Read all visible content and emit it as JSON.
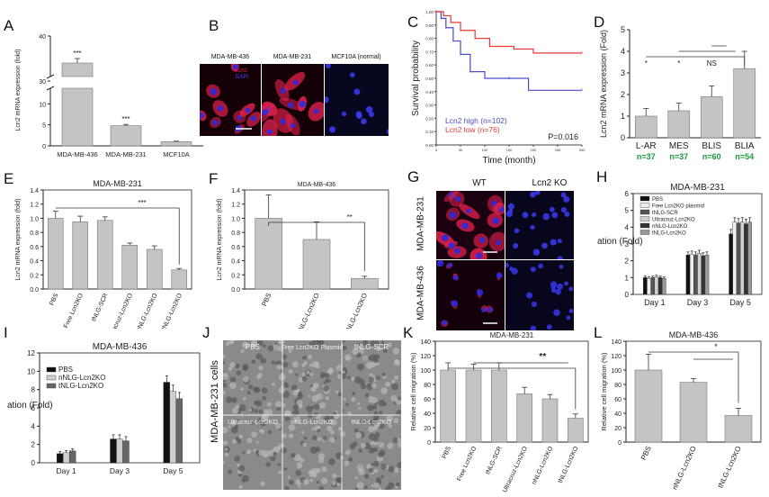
{
  "panel_letters": [
    "A",
    "B",
    "C",
    "D",
    "E",
    "F",
    "G",
    "H",
    "I",
    "J",
    "K",
    "L"
  ],
  "colors": {
    "bar_gray": "#c4c4c4",
    "km_red": "#e23a3a",
    "km_blue": "#4a4ad0",
    "group_green": "#1a9a3a",
    "micro_red": "#e0204a",
    "micro_blue": "#2a2ae0",
    "micro_bg": "#150008",
    "bw_bg": "#8a8a8a"
  },
  "panelB": {
    "titles": [
      "MDA-MB-436",
      "MDA-MB-231",
      "MCF10A (normal)"
    ],
    "legend": [
      "Lcn2",
      "DAPI"
    ]
  },
  "panelG": {
    "col_titles": [
      "WT",
      "Lcn2 KO"
    ],
    "row_titles": [
      "MDA-MB-231",
      "MDA-MB-436"
    ]
  },
  "panelJ": {
    "side_label": "MDA-MB-231 cells",
    "cells": [
      "PBS",
      "Free Lcn2KO Plasmid",
      "tNLG-SCR",
      "Ultracruz-Lcn2KO",
      "nNLG-Lcn2KO",
      "tNLG-Lcn2KO"
    ]
  },
  "chart_data": [
    {
      "panel": "A",
      "type": "bar",
      "ylabel": "Lcn2 mRNA expression (fold)",
      "categories": [
        "MDA-MB-436",
        "MDA-MB-231",
        "MCF10A"
      ],
      "values": [
        34,
        4.8,
        1
      ],
      "errors": [
        1,
        0.3,
        0.1
      ],
      "axis_break": [
        12,
        30
      ],
      "yticks": [
        "0",
        "5",
        "10",
        "30",
        "40"
      ],
      "significance": [
        "***",
        "***",
        ""
      ]
    },
    {
      "panel": "C",
      "type": "line",
      "ylabel": "Survival probability",
      "xlabel": "Time (month)",
      "yticks": [
        "0.00",
        "0.10",
        "0.20",
        "0.30",
        "0.40",
        "0.50",
        "0.60",
        "0.70",
        "0.80",
        "0.90",
        "1.00"
      ],
      "xticks": [
        "0",
        "50",
        "100",
        "150",
        "200",
        "250",
        "300"
      ],
      "ylim": [
        0,
        1
      ],
      "xlim": [
        0,
        300
      ],
      "series": [
        {
          "name": "Lcn2 high (n=102)",
          "x": [
            0,
            10,
            20,
            35,
            50,
            70,
            100,
            150,
            190,
            300
          ],
          "y": [
            1,
            0.95,
            0.88,
            0.78,
            0.68,
            0.55,
            0.5,
            0.5,
            0.41,
            0.41
          ]
        },
        {
          "name": "Lcn2 low (n=76)",
          "x": [
            0,
            15,
            30,
            50,
            80,
            110,
            160,
            200,
            300
          ],
          "y": [
            1,
            0.97,
            0.92,
            0.86,
            0.8,
            0.74,
            0.72,
            0.69,
            0.69
          ]
        }
      ],
      "annotation": "P=0.016"
    },
    {
      "panel": "D",
      "type": "bar",
      "ylabel": "Lcn2 mRNA expression (Fold)",
      "categories": [
        "L-AR",
        "MES",
        "BLIS",
        "BLIA"
      ],
      "group_n": [
        "n=37",
        "n=37",
        "n=60",
        "n=54"
      ],
      "values": [
        1.0,
        1.25,
        1.9,
        3.2
      ],
      "errors": [
        0.35,
        0.35,
        0.5,
        0.8
      ],
      "ylim": [
        0,
        5
      ],
      "yticks": [
        "0",
        "1",
        "2",
        "3",
        "4",
        "5"
      ],
      "significance": [
        "*",
        "*",
        "NS"
      ]
    },
    {
      "panel": "E",
      "type": "bar",
      "title": "MDA-MB-231",
      "ylabel": "Lcn2 mRNA expression (fold)",
      "categories": [
        "PBS",
        "Free Lcn2KO",
        "tNLG-SCR",
        "Ultracruz-Lcn2KO",
        "nNLG-Lcn2KO",
        "tNLG-Lcn2KO"
      ],
      "values": [
        1.0,
        0.95,
        0.97,
        0.62,
        0.56,
        0.27
      ],
      "errors": [
        0.1,
        0.08,
        0.05,
        0.03,
        0.05,
        0.02
      ],
      "ylim": [
        0,
        1.4
      ],
      "yticks": [
        "0.0",
        "0.2",
        "0.4",
        "0.6",
        "0.8",
        "1.0",
        "1.2",
        "1.4"
      ],
      "significance": [
        "***"
      ]
    },
    {
      "panel": "F",
      "type": "bar",
      "title": "MDA-MB-436",
      "ylabel": "Lcn2 mRNA expression (fold)",
      "categories": [
        "PBS",
        "nNLG-Lcn2KO",
        "tNLG-Lcn2KO"
      ],
      "values": [
        1.0,
        0.7,
        0.15
      ],
      "errors": [
        0.33,
        0.25,
        0.03
      ],
      "ylim": [
        0,
        1.4
      ],
      "yticks": [
        "0.0",
        "0.2",
        "0.4",
        "0.6",
        "0.8",
        "1.0",
        "1.2",
        "1.4"
      ],
      "significance": [
        "**"
      ]
    },
    {
      "panel": "H",
      "type": "bar",
      "title": "MDA-MB-231",
      "ylabel": "Cell proliferation (Fold)",
      "categories": [
        "Day 1",
        "Day 3",
        "Day 5"
      ],
      "ylim": [
        0,
        6
      ],
      "yticks": [
        "0",
        "1",
        "2",
        "3",
        "4",
        "5",
        "6"
      ],
      "series": [
        {
          "name": "PBS",
          "color": "#111111",
          "values": [
            1.0,
            2.35,
            3.6
          ]
        },
        {
          "name": "Free Lcn2KO plasmid",
          "color": "#eeeeee",
          "values": [
            0.95,
            2.4,
            4.3
          ]
        },
        {
          "name": "tNLG-SCR",
          "color": "#555555",
          "values": [
            1.0,
            2.35,
            4.25
          ]
        },
        {
          "name": "Ultracruz-Lcn2KO",
          "color": "#d0d0d0",
          "values": [
            1.05,
            2.45,
            4.3
          ]
        },
        {
          "name": "nNLG-Lcn2KO",
          "color": "#333333",
          "values": [
            1.0,
            2.3,
            4.2
          ]
        },
        {
          "name": "tNLG-Lcn2KO",
          "color": "#999999",
          "values": [
            0.95,
            2.35,
            4.3
          ]
        }
      ]
    },
    {
      "panel": "I",
      "type": "bar",
      "title": "MDA-MB-436",
      "ylabel": "Cell proliferation (Fold)",
      "categories": [
        "Day 1",
        "Day 3",
        "Day 5"
      ],
      "ylim": [
        0,
        12
      ],
      "yticks": [
        "0",
        "2",
        "4",
        "6",
        "8",
        "10",
        "12"
      ],
      "series": [
        {
          "name": "PBS",
          "color": "#111111",
          "values": [
            1.0,
            2.6,
            8.8
          ]
        },
        {
          "name": "nNLG-Lcn2KO",
          "color": "#cfcfcf",
          "values": [
            1.1,
            2.6,
            7.8
          ]
        },
        {
          "name": "tNLG-Lcn2KO",
          "color": "#666666",
          "values": [
            1.3,
            2.4,
            7.0
          ]
        }
      ]
    },
    {
      "panel": "K",
      "type": "bar",
      "title": "MDA-MB-231",
      "ylabel": "Relative cell migration (%)",
      "categories": [
        "PBS",
        "Free Lcn2KO",
        "tNLG-SCR",
        "Ultracruz-Lcn2KO",
        "nNLG-Lcn2KO",
        "tNLG-Lcn2KO"
      ],
      "values": [
        100,
        100,
        100,
        67,
        60,
        33
      ],
      "errors": [
        10,
        8,
        10,
        9,
        6,
        6
      ],
      "ylim": [
        0,
        140
      ],
      "yticks": [
        "0",
        "20",
        "40",
        "60",
        "80",
        "100",
        "120",
        "140"
      ],
      "significance": [
        "**"
      ]
    },
    {
      "panel": "L",
      "type": "bar",
      "title": "MDA-MB-436",
      "ylabel": "Relative cell migration (%)",
      "categories": [
        "PBS",
        "nNLG-Lcn2KO",
        "tNLG-Lcn2KO"
      ],
      "values": [
        100,
        83,
        37
      ],
      "errors": [
        22,
        5,
        10
      ],
      "ylim": [
        0,
        140
      ],
      "yticks": [
        "0",
        "20",
        "40",
        "60",
        "80",
        "100",
        "120",
        "140"
      ],
      "significance": [
        "*"
      ]
    }
  ]
}
